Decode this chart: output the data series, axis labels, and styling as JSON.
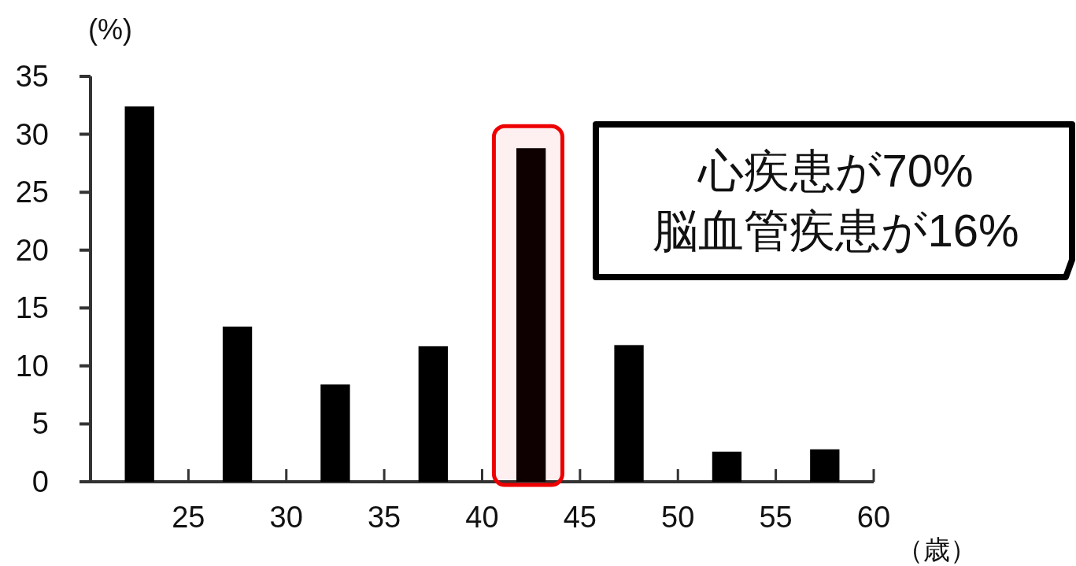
{
  "chart_data": {
    "type": "bar",
    "x": [
      22.5,
      27.5,
      32.5,
      37.5,
      42.5,
      47.5,
      52.5,
      57.5
    ],
    "values": [
      32.4,
      13.4,
      8.4,
      11.7,
      28.8,
      11.8,
      2.6,
      2.8
    ],
    "color": "#000000",
    "xlim": [
      20,
      60
    ],
    "xticks": [
      25,
      30,
      35,
      40,
      45,
      50,
      55,
      60
    ],
    "ylim": [
      0,
      35
    ],
    "yticks": [
      0,
      5,
      10,
      15,
      20,
      25,
      30,
      35
    ],
    "xlabel": "（歳）",
    "ylabel": "(%)",
    "bands": [
      {
        "axis": "x",
        "from": 40.6,
        "to": 44.1,
        "color": "#ee0000"
      }
    ],
    "annotations": [
      "心疾患が70%",
      "脳血管疾患が16%"
    ],
    "grid": false
  }
}
